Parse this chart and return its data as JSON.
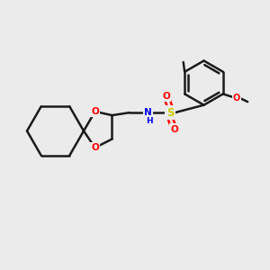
{
  "background_color": "#ebebeb",
  "bond_color": "#1a1a1a",
  "atom_colors": {
    "O": "#ff0000",
    "N": "#0000ee",
    "S": "#cccc00",
    "C": "#1a1a1a"
  },
  "figsize": [
    3.0,
    3.0
  ],
  "dpi": 100,
  "xlim": [
    0,
    10
  ],
  "ylim": [
    0,
    10
  ]
}
